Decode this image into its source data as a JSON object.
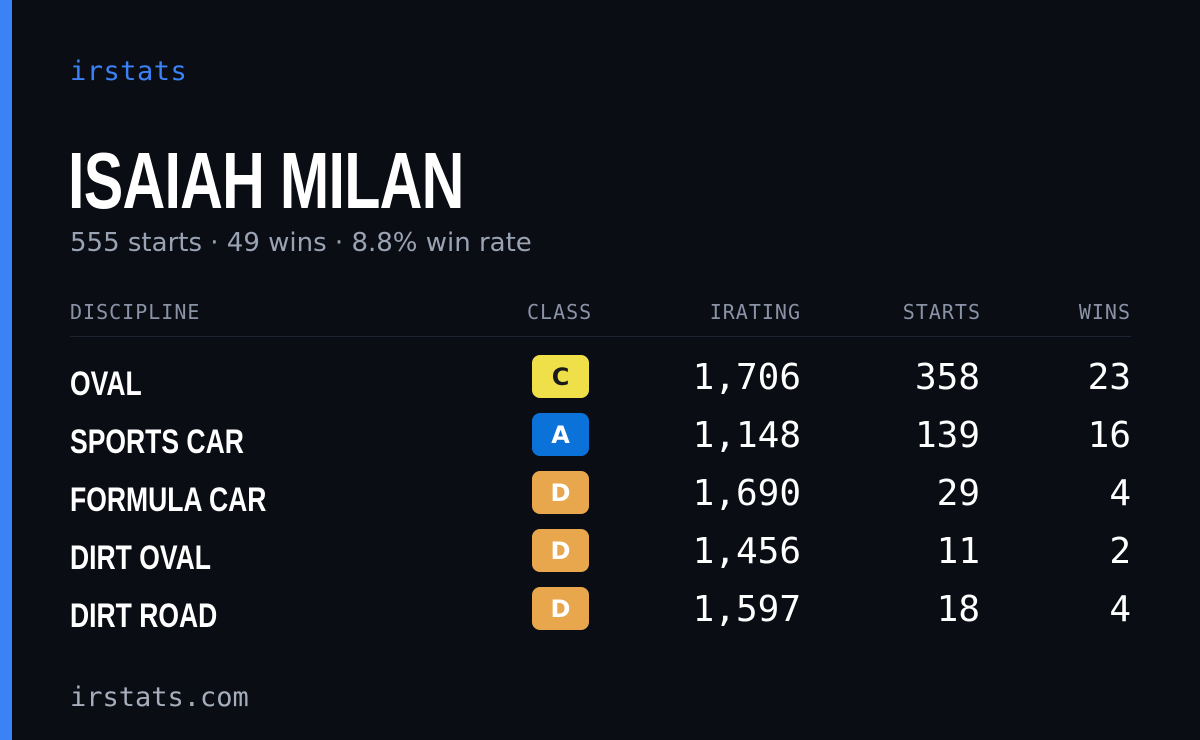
{
  "brand": "irstats",
  "driver": {
    "name": "ISAIAH MILAN",
    "summary": "555 starts · 49 wins · 8.8% win rate"
  },
  "table": {
    "headers": {
      "discipline": "DISCIPLINE",
      "class": "CLASS",
      "irating": "IRATING",
      "starts": "STARTS",
      "wins": "WINS"
    },
    "rows": [
      {
        "discipline": "OVAL",
        "class": "C",
        "class_bg": "#efe04a",
        "class_fg": "#1a1a1a",
        "irating": "1,706",
        "starts": "358",
        "wins": "23"
      },
      {
        "discipline": "SPORTS CAR",
        "class": "A",
        "class_bg": "#0a72d8",
        "class_fg": "#ffffff",
        "irating": "1,148",
        "starts": "139",
        "wins": "16"
      },
      {
        "discipline": "FORMULA CAR",
        "class": "D",
        "class_bg": "#e8a74c",
        "class_fg": "#ffffff",
        "irating": "1,690",
        "starts": "29",
        "wins": "4"
      },
      {
        "discipline": "DIRT OVAL",
        "class": "D",
        "class_bg": "#e8a74c",
        "class_fg": "#ffffff",
        "irating": "1,456",
        "starts": "11",
        "wins": "2"
      },
      {
        "discipline": "DIRT ROAD",
        "class": "D",
        "class_bg": "#e8a74c",
        "class_fg": "#ffffff",
        "irating": "1,597",
        "starts": "18",
        "wins": "4"
      }
    ]
  },
  "footer": "irstats.com",
  "colors": {
    "accent": "#3b82f6",
    "background": "#0a0d14"
  }
}
